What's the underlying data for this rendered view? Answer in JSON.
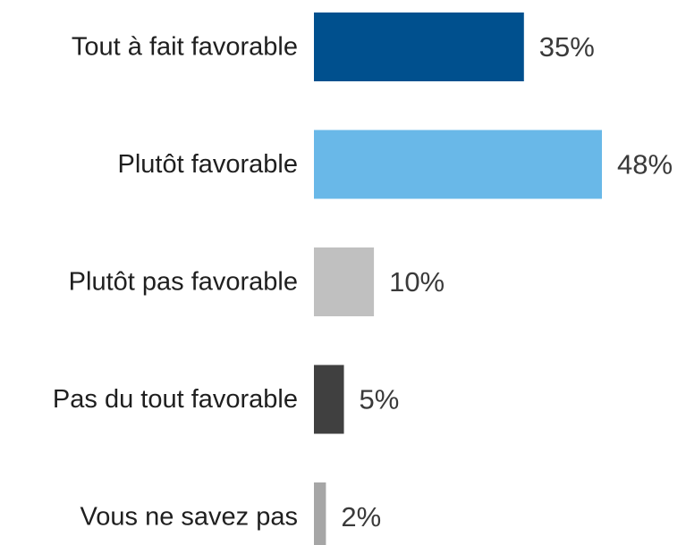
{
  "chart_data": {
    "type": "bar",
    "orientation": "horizontal",
    "categories": [
      "Tout à fait favorable",
      "Plutôt favorable",
      "Plutôt pas favorable",
      "Pas du tout favorable",
      "Vous ne savez pas"
    ],
    "values": [
      35,
      48,
      10,
      5,
      2
    ],
    "value_labels": [
      "35%",
      "48%",
      "10%",
      "5%",
      "2%"
    ],
    "colors": [
      "#00508e",
      "#69b8e8",
      "#c0c0c0",
      "#404040",
      "#a6a6a6"
    ],
    "xlim": [
      0,
      48
    ],
    "grid": false,
    "legend": "none"
  }
}
